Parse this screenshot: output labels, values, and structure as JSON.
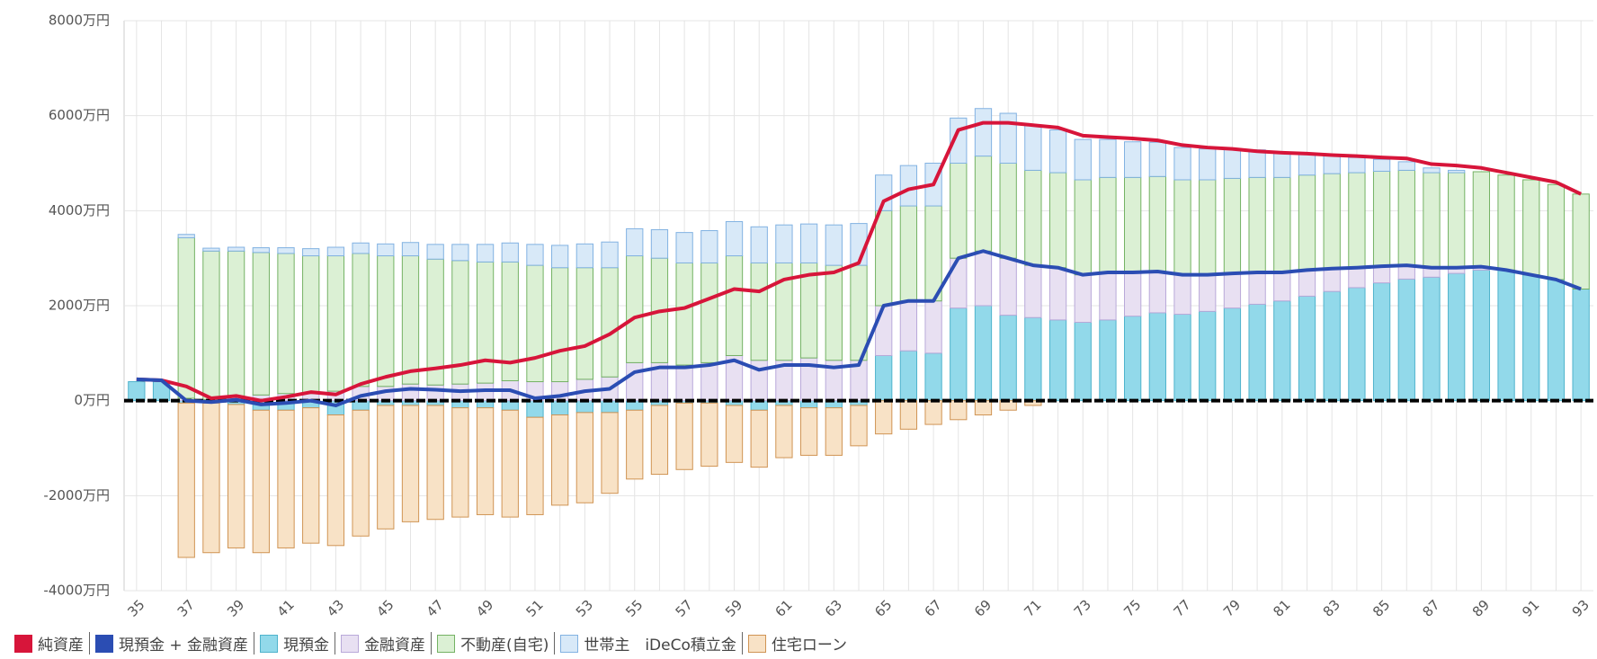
{
  "chart_data": {
    "type": "bar",
    "categories": [
      "35",
      null,
      "37",
      null,
      "39",
      null,
      "41",
      null,
      "43",
      null,
      "45",
      null,
      "47",
      null,
      "49",
      null,
      "51",
      null,
      "53",
      null,
      "55",
      null,
      "57",
      null,
      "59",
      null,
      "61",
      null,
      "63",
      null,
      "65",
      null,
      "67",
      null,
      "69",
      null,
      "71",
      null,
      "73",
      null,
      "75",
      null,
      "77",
      null,
      "79",
      null,
      "81",
      null,
      "83",
      null,
      "85",
      null,
      "87",
      null,
      "89",
      null,
      "91",
      null,
      "93"
    ],
    "ylim": [
      -4000,
      8000
    ],
    "yticks": [
      {
        "value": -4000,
        "label": "-4000万円"
      },
      {
        "value": -2000,
        "label": "-2000万円"
      },
      {
        "value": 0,
        "label": "0万円"
      },
      {
        "value": 2000,
        "label": "2000万円"
      },
      {
        "value": 4000,
        "label": "4000万円"
      },
      {
        "value": 6000,
        "label": "6000万円"
      },
      {
        "value": 8000,
        "label": "8000万円"
      }
    ],
    "grid": true,
    "stacked": true,
    "legend": "bottom",
    "series": [
      {
        "name": "純資産",
        "type": "line",
        "color": "#d7153a",
        "values": [
          450,
          430,
          300,
          50,
          100,
          0,
          80,
          180,
          130,
          350,
          500,
          620,
          680,
          750,
          850,
          800,
          900,
          1050,
          1150,
          1400,
          1750,
          1880,
          1950,
          2150,
          2350,
          2300,
          2550,
          2650,
          2700,
          2900,
          4200,
          4450,
          4550,
          5700,
          5850,
          5850,
          5800,
          5750,
          5580,
          5550,
          5520,
          5480,
          5380,
          5330,
          5300,
          5250,
          5220,
          5200,
          5170,
          5150,
          5120,
          5100,
          4980,
          4950,
          4900,
          4800,
          4700,
          4600,
          4350
        ]
      },
      {
        "name": "現預金 + 金融資産",
        "type": "line",
        "color": "#2b4db3",
        "values": [
          450,
          430,
          0,
          -30,
          20,
          -80,
          -50,
          0,
          -100,
          100,
          200,
          250,
          230,
          200,
          220,
          220,
          50,
          100,
          200,
          250,
          600,
          700,
          700,
          750,
          850,
          650,
          750,
          750,
          700,
          750,
          2000,
          2100,
          2100,
          3000,
          3150,
          3000,
          2850,
          2800,
          2650,
          2700,
          2700,
          2720,
          2650,
          2650,
          2680,
          2700,
          2700,
          2750,
          2780,
          2800,
          2830,
          2850,
          2800,
          2800,
          2820,
          2750,
          2650,
          2550,
          2350
        ]
      },
      {
        "name": "現預金",
        "type": "bar",
        "color": "#92d9ea",
        "edge_color": "#4fb3cc",
        "values": [
          400,
          400,
          -50,
          -50,
          -80,
          -200,
          -200,
          -150,
          -300,
          -200,
          -100,
          -100,
          -100,
          -150,
          -150,
          -200,
          -350,
          -300,
          -250,
          -250,
          -200,
          -100,
          -50,
          -50,
          -100,
          -200,
          -100,
          -150,
          -150,
          -100,
          950,
          1050,
          1000,
          1950,
          2000,
          1800,
          1750,
          1700,
          1650,
          1700,
          1780,
          1850,
          1820,
          1880,
          1950,
          2030,
          2100,
          2200,
          2300,
          2380,
          2480,
          2560,
          2600,
          2680,
          2750,
          2750,
          2650,
          2550,
          2350
        ]
      },
      {
        "name": "金融資産",
        "type": "bar",
        "color": "#e8e0f2",
        "edge_color": "#b9a9d9",
        "values": [
          0,
          0,
          50,
          20,
          100,
          120,
          150,
          150,
          200,
          300,
          300,
          350,
          330,
          350,
          370,
          420,
          400,
          400,
          450,
          500,
          800,
          800,
          750,
          800,
          950,
          850,
          850,
          900,
          850,
          850,
          1050,
          1050,
          1100,
          1050,
          1150,
          1200,
          1100,
          1100,
          1000,
          1000,
          920,
          870,
          830,
          770,
          730,
          670,
          600,
          550,
          480,
          420,
          350,
          290,
          200,
          120,
          70,
          0,
          0,
          0,
          0
        ]
      },
      {
        "name": "不動産(自宅)",
        "type": "bar",
        "color": "#dbf0d4",
        "edge_color": "#74b264",
        "values": [
          0,
          0,
          3380,
          3130,
          3050,
          3000,
          2950,
          2900,
          2850,
          2800,
          2750,
          2700,
          2650,
          2600,
          2550,
          2500,
          2450,
          2400,
          2350,
          2300,
          2250,
          2200,
          2150,
          2100,
          2100,
          2050,
          2050,
          2000,
          2000,
          2000,
          2000,
          2000,
          2000,
          2000,
          2000,
          2000,
          2000,
          2000,
          2000,
          2000,
          2000,
          2000,
          2000,
          2000,
          2000,
          2000,
          2000,
          2000,
          2000,
          2000,
          2000,
          2000,
          2000,
          2000,
          2000,
          2000,
          2000,
          2000,
          2000
        ]
      },
      {
        "name": "世帯主　iDeCo積立金",
        "type": "bar",
        "color": "#d8e9f8",
        "edge_color": "#82b2e2",
        "values": [
          0,
          0,
          70,
          60,
          80,
          100,
          120,
          150,
          180,
          220,
          250,
          280,
          310,
          340,
          370,
          400,
          440,
          470,
          500,
          540,
          570,
          600,
          640,
          680,
          720,
          760,
          800,
          820,
          850,
          880,
          750,
          850,
          900,
          950,
          1000,
          1050,
          950,
          900,
          850,
          800,
          750,
          720,
          680,
          650,
          620,
          580,
          520,
          450,
          380,
          320,
          250,
          180,
          100,
          50,
          0,
          0,
          0,
          0,
          0
        ]
      },
      {
        "name": "住宅ローン",
        "type": "bar",
        "color": "#f8e2c6",
        "edge_color": "#d09454",
        "values": [
          0,
          0,
          -3250,
          -3150,
          -3020,
          -3000,
          -2900,
          -2850,
          -2750,
          -2650,
          -2600,
          -2450,
          -2400,
          -2300,
          -2250,
          -2250,
          -2050,
          -1900,
          -1900,
          -1700,
          -1450,
          -1450,
          -1400,
          -1330,
          -1200,
          -1200,
          -1100,
          -1000,
          -1000,
          -850,
          -700,
          -600,
          -500,
          -400,
          -300,
          -200,
          -100,
          0,
          0,
          0,
          0,
          0,
          0,
          0,
          0,
          0,
          0,
          0,
          0,
          0,
          0,
          0,
          0,
          0,
          0,
          0,
          0,
          0,
          0
        ]
      }
    ]
  }
}
